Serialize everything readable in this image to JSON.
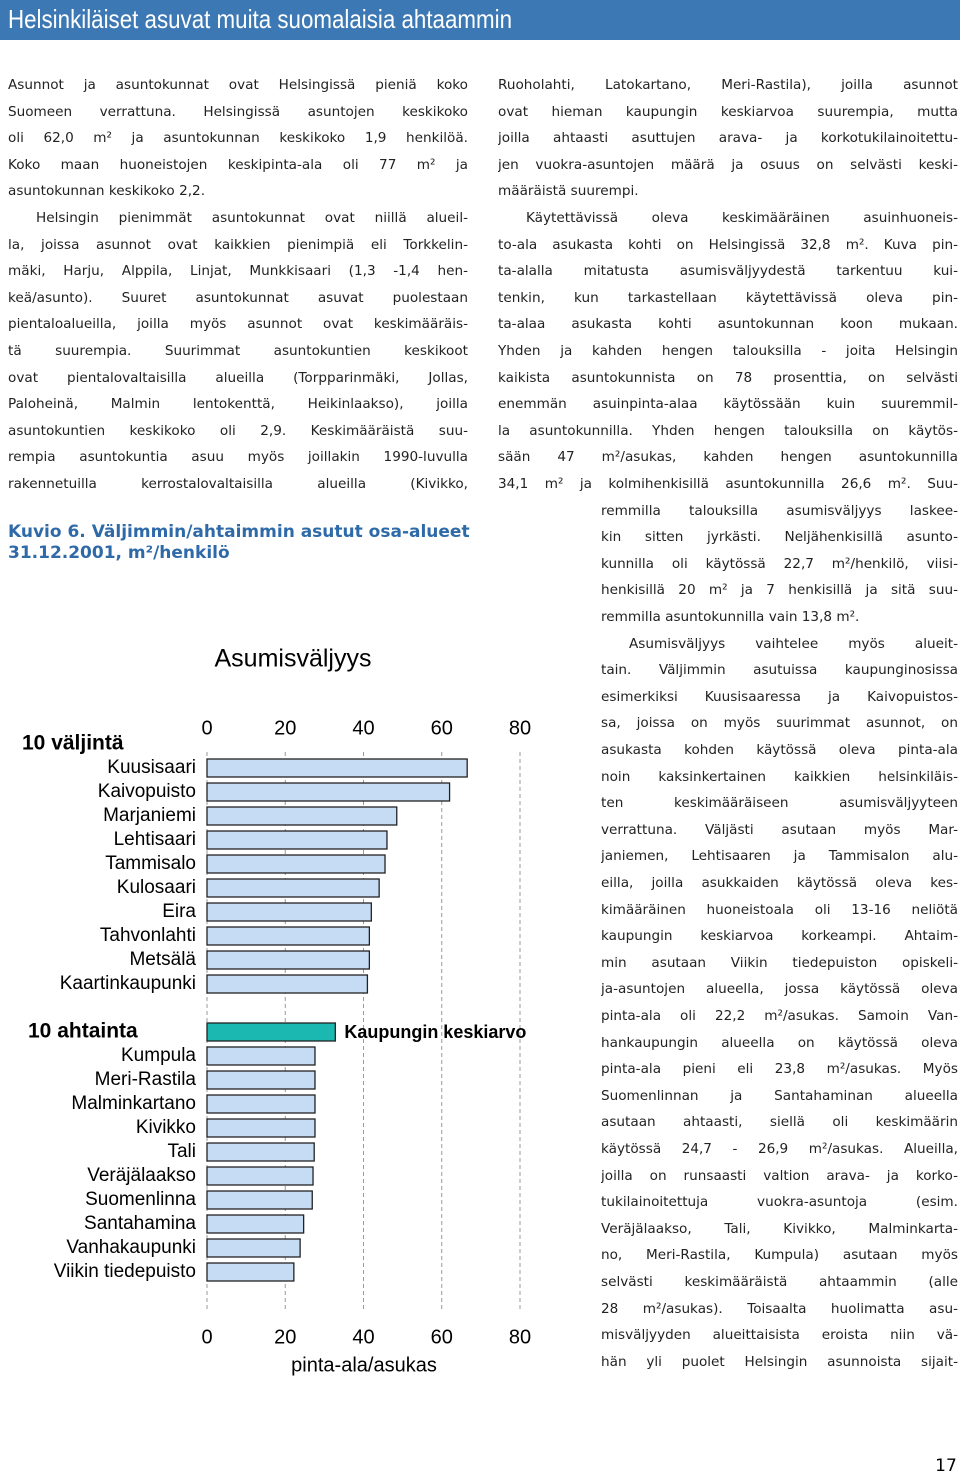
{
  "header": {
    "title": "Helsinkiläiset asuvat muita suomalaisia ahtaammin"
  },
  "text_columns": [
    [
      [
        "Asunnot ja asuntokunnat ovat Helsingissä pieniä koko",
        "Suomeen verrattuna. Helsingissä asuntojen keskikoko",
        "oli 62,0 m² ja asuntokunnan keskikoko 1,9 henkilöä.",
        "Koko maan huoneistojen keskipinta-ala oli 77 m² ja",
        "asuntokunnan keskikoko 2,2."
      ],
      [
        "Helsingin pienimmät asuntokunnat ovat niillä alueil-",
        "la, joissa asunnot ovat kaikkien pienimpiä eli Torkkelin-",
        "mäki, Harju, Alppila, Linjat, Munkkisaari (1,3 -1,4 hen-",
        "keä/asunto). Suuret asuntokunnat asuvat puolestaan",
        "pientaloalueilla, joilla myös asunnot ovat keskimääräis-",
        "tä suurempia. Suurimmat asuntokuntien keskikoot",
        "ovat pientalovaltaisilla alueilla (Torpparinmäki, Jollas,",
        "Paloheinä, Malmin lentokenttä, Heikinlaakso), joilla",
        "asuntokuntien keskikoko oli 2,9. Keskimääräistä suu-",
        "rempia asuntokuntia asuu myös joillakin 1990-luvulla",
        "rakennetuilla kerrostalovaltaisilla alueilla (Kivikko,"
      ]
    ],
    [
      [
        "Ruoholahti, Latokartano, Meri-Rastila), joilla asunnot",
        "ovat hieman kaupungin keskiarvoa suurempia, mutta",
        "joilla ahtaasti asuttujen arava- ja korkotukilainoitettu-",
        "jen vuokra-asuntojen määrä ja osuus on selvästi keski-",
        "määräistä suurempi."
      ],
      [
        "Käytettävissä oleva keskimääräinen asuinhuoneis-",
        "to-ala asukasta kohti on Helsingissä 32,8 m². Kuva pin-",
        "ta-alalla mitatusta asumisväljyydestä tarkentuu kui-",
        "tenkin, kun tarkastellaan käytettävissä oleva pin-",
        "ta-alaa asukasta kohti asuntokunnan koon mukaan.",
        "Yhden ja kahden hengen talouksilla - joita Helsingin",
        "kaikista asuntokunnista on 78 prosenttia, on selvästi",
        "enemmän asuinpinta-alaa käytössään kuin suuremmil-",
        "la asuntokunnilla. Yhden hengen talouksilla on käytös-",
        "sään 47 m²/asukas, kahden hengen asuntokunnilla",
        "34,1 m² ja kolmihenkisillä asuntokunnilla 26,6 m². Suu-",
        "remmilla talouksilla asumisväljyys laskee-",
        "kin sitten jyrkästi. Neljähenkisillä asunto-",
        "kunnilla oli käytössä 22,7 m²/henkilö, viisi-",
        "henkisillä 20 m² ja 7 henkisillä ja sitä suu-",
        "remmilla asuntokunnilla vain 13,8 m²."
      ],
      [
        "Asumisväljyys vaihtelee myös alueit-",
        "tain. Väljimmin asutuissa kaupunginosissa",
        "esimerkiksi Kuusisaaressa ja Kaivopuistos-",
        "sa, joissa on myös suurimmat asunnot, on",
        "asukasta kohden käytössä oleva pinta-ala",
        "noin kaksinkertainen kaikkien helsinkiläis-",
        "ten keskimääräiseen asumisväljyyteen",
        "verrattuna. Väljästi asutaan myös Mar-",
        "janiemen, Lehtisaaren ja Tammisalon alu-",
        "eilla, joilla asukkaiden käytössä oleva kes-",
        "kimääräinen huoneistoala oli 13-16 neliötä",
        "kaupungin keskiarvoa korkeampi. Ahtaim-",
        "min asutaan Viikin tiedepuiston opiskeli-",
        "ja-asuntojen alueella, jossa käytössä oleva",
        "pinta-ala oli 22,2 m²/asukas. Samoin Van-",
        "hankaupungin alueella on käytössä oleva",
        "pinta-ala pieni eli 23,8 m²/asukas. Myös",
        "Suomenlinnan ja Santahaminan alueella",
        "asutaan ahtaasti, siellä oli keskimäärin",
        "käytössä 24,7 - 26,9 m²/asukas. Alueilla,",
        "joilla on runsaasti valtion arava- ja korko-",
        "tukilainoitettuja vuokra-asuntoja (esim.",
        "Veräjälaakso, Tali, Kivikko, Malminkarta-",
        "no, Meri-Rastila, Kumpula) asutaan myös",
        "selvästi keskimääräistä ahtaammin (alle",
        "28 m²/asukas). Toisaalta huolimatta asu-",
        "misväljyyden alueittaisista eroista niin vä-",
        "hän yli puolet Helsingin asunnoista sijait-"
      ]
    ]
  ],
  "chart_data": {
    "type": "bar",
    "orientation": "horizontal",
    "caption": [
      "Kuvio 6. Väljimmin/ahtaimmin asutut osa-alueet",
      "31.12.2001, m²/henkilö"
    ],
    "title": "Asumisväljyys",
    "xlabel": "pinta-ala/asukas",
    "xlim": [
      0,
      80
    ],
    "xticks": [
      0,
      20,
      40,
      60,
      80
    ],
    "grid": true,
    "groups": [
      {
        "label": "10 väljintä",
        "color": "#c6dcf4",
        "categories": [
          "Kuusisaari",
          "Kaivopuisto",
          "Marjaniemi",
          "Lehtisaari",
          "Tammisalo",
          "Kulosaari",
          "Eira",
          "Tahvonlahti",
          "Metsälä",
          "Kaartinkaupunki"
        ],
        "values": [
          66.5,
          62,
          48.5,
          46,
          45.5,
          44,
          42,
          41.5,
          41.5,
          41
        ]
      },
      {
        "color": "#1ab8b0",
        "categories": [
          "Kaupungin keskiarvo"
        ],
        "values": [
          32.8
        ]
      },
      {
        "label": "10 ahtainta",
        "color": "#c6dcf4",
        "categories": [
          "Kumpula",
          "Meri-Rastila",
          "Malminkartano",
          "Kivikko",
          "Tali",
          "Veräjälaakso",
          "Suomenlinna",
          "Santahamina",
          "Vanhakaupunki",
          "Viikin tiedepuisto"
        ],
        "values": [
          27.6,
          27.6,
          27.6,
          27.6,
          27.4,
          27.1,
          26.9,
          24.7,
          23.8,
          22.2
        ]
      }
    ]
  },
  "page_number": "17"
}
